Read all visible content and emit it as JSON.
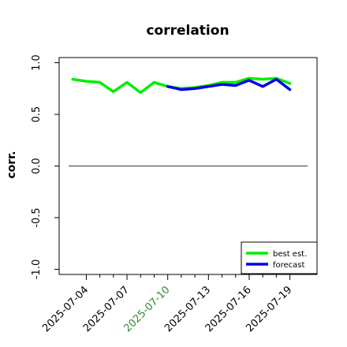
{
  "chart_data": {
    "type": "line",
    "title": "correlation",
    "xlabel": "",
    "ylabel": "corr.",
    "ylim": [
      -1.05,
      1.05
    ],
    "xlim": [
      "2025-07-02",
      "2025-07-21"
    ],
    "y_ticks": [
      1.0,
      0.5,
      0.0,
      -0.5,
      -1.0
    ],
    "y_tick_labels": [
      "1.0",
      "0.5",
      "0.0",
      "-0.5",
      "-1.0"
    ],
    "x_ticks": [
      "2025-07-04",
      "2025-07-05",
      "2025-07-06",
      "2025-07-07",
      "2025-07-08",
      "2025-07-09",
      "2025-07-10",
      "2025-07-11",
      "2025-07-12",
      "2025-07-13",
      "2025-07-14",
      "2025-07-15",
      "2025-07-16",
      "2025-07-17",
      "2025-07-18",
      "2025-07-19"
    ],
    "x_tick_labels": [
      "2025-07-04",
      "2025-07-07",
      "2025-07-10",
      "2025-07-13",
      "2025-07-16",
      "2025-07-19"
    ],
    "x_tick_label_colors": [
      "#000000",
      "#000000",
      "#2e8b2e",
      "#000000",
      "#000000",
      "#000000"
    ],
    "reference_line": {
      "y": 0.0,
      "color": "#555555"
    },
    "grid": false,
    "legend_position": "lower-right",
    "series": [
      {
        "name": "best est.",
        "color": "#00ee00",
        "x": [
          "2025-07-03",
          "2025-07-04",
          "2025-07-05",
          "2025-07-06",
          "2025-07-07",
          "2025-07-08",
          "2025-07-09",
          "2025-07-10",
          "2025-07-11",
          "2025-07-12",
          "2025-07-13",
          "2025-07-14",
          "2025-07-15",
          "2025-07-16",
          "2025-07-17",
          "2025-07-18",
          "2025-07-19"
        ],
        "values": [
          0.84,
          0.82,
          0.81,
          0.72,
          0.81,
          0.71,
          0.81,
          0.77,
          0.75,
          0.76,
          0.78,
          0.81,
          0.81,
          0.85,
          0.84,
          0.85,
          0.8
        ]
      },
      {
        "name": "forecast",
        "color": "#0000ee",
        "x": [
          "2025-07-10",
          "2025-07-11",
          "2025-07-12",
          "2025-07-13",
          "2025-07-14",
          "2025-07-15",
          "2025-07-16",
          "2025-07-17",
          "2025-07-18",
          "2025-07-19"
        ],
        "values": [
          0.77,
          0.74,
          0.75,
          0.77,
          0.79,
          0.78,
          0.83,
          0.77,
          0.84,
          0.74
        ]
      }
    ]
  }
}
